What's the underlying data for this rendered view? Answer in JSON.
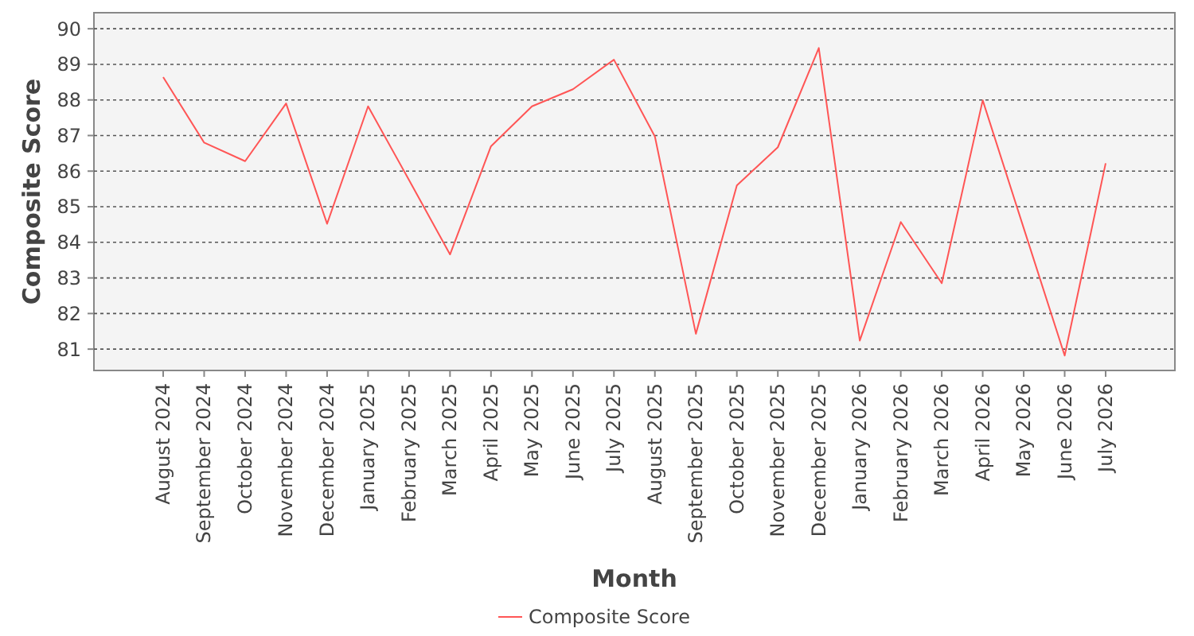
{
  "chart_data": {
    "type": "line",
    "xlabel": "Month",
    "ylabel": "Composite Score",
    "categories": [
      "August 2024",
      "September 2024",
      "October 2024",
      "November 2024",
      "December 2024",
      "January 2025",
      "February 2025",
      "March 2025",
      "April 2025",
      "May 2025",
      "June 2025",
      "July 2025",
      "August 2025",
      "September 2025",
      "October 2025",
      "November 2025",
      "December 2025",
      "January 2026",
      "February 2026",
      "March 2026",
      "April 2026",
      "May 2026",
      "June 2026",
      "July 2026"
    ],
    "series": [
      {
        "name": "Composite Score",
        "color": "#ff5555",
        "values": [
          88.64,
          86.8,
          86.28,
          87.9,
          84.52,
          87.82,
          85.75,
          83.66,
          86.7,
          87.82,
          88.3,
          89.13,
          86.97,
          81.43,
          85.6,
          86.67,
          89.46,
          81.24,
          84.57,
          82.85,
          87.99,
          84.4,
          80.82,
          86.22
        ]
      }
    ],
    "ylim": [
      80.4,
      90.45
    ],
    "yticks": [
      81,
      82,
      83,
      84,
      85,
      86,
      87,
      88,
      89,
      90
    ],
    "grid": "y",
    "legend": "bottom",
    "marker": "none",
    "line_style": "solid"
  }
}
